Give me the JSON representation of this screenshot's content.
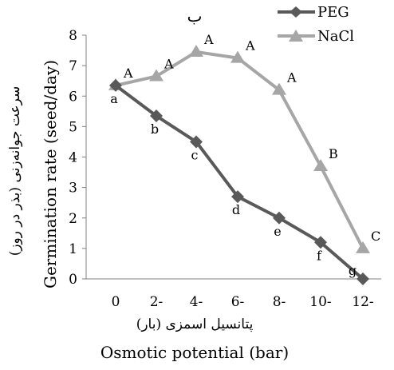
{
  "chart_data": {
    "type": "line",
    "title": "ب",
    "xlabel": "Osmotic potential (bar)",
    "xlabel_fa": "پتانسیل اسمزی (بار)",
    "ylabel": "Germination rate (seed/day)",
    "ylabel_fa": "سرعت جوانه‌زنی (بذر در روز)",
    "categories": [
      "0",
      "2-",
      "4-",
      "6-",
      "8-",
      "10-",
      "12-"
    ],
    "yticks": [
      "0",
      "1",
      "2",
      "3",
      "4",
      "5",
      "6",
      "7",
      "8"
    ],
    "ylim": [
      0,
      8
    ],
    "grid": false,
    "legend_position": "top-right",
    "series": [
      {
        "name": "PEG",
        "color": "#595959",
        "marker": "diamond",
        "values": [
          6.35,
          5.35,
          4.5,
          2.7,
          2.0,
          1.2,
          0.0
        ],
        "labels": [
          "a",
          "b",
          "c",
          "d",
          "e",
          "f",
          "g"
        ]
      },
      {
        "name": "NaCl",
        "color": "#a6a6a6",
        "marker": "triangle",
        "values": [
          6.35,
          6.65,
          7.45,
          7.25,
          6.2,
          3.7,
          1.0
        ],
        "labels": [
          "A",
          "A",
          "A",
          "A",
          "A",
          "B",
          "C"
        ]
      }
    ]
  }
}
